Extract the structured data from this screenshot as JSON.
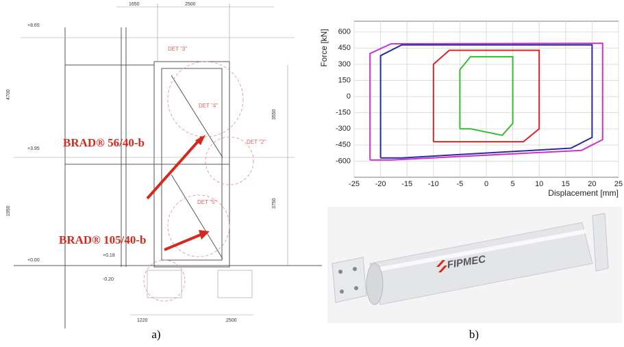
{
  "figure_a": {
    "levels": [
      "+8.65",
      "+3.95",
      "+0.00",
      "+0.18",
      "-0.20"
    ],
    "dimensions": [
      "1650",
      "2500",
      "4700",
      "3550",
      "1950",
      "3750",
      "1220",
      "2500"
    ],
    "details": [
      "DET \"3\"",
      "DET \"4\"",
      "DET \"2\"",
      "DET \"5\""
    ],
    "brace_labels": [
      "BRAD® 56/40-b",
      "BRAD® 105/40-b"
    ],
    "caption": "a)"
  },
  "chart_data": {
    "type": "line",
    "xlabel": "Displacement [mm]",
    "ylabel": "Force [kN]",
    "xlim": [
      -25,
      25
    ],
    "ylim": [
      -750,
      700
    ],
    "xticks": [
      -25,
      -20,
      -15,
      -10,
      -5,
      0,
      5,
      10,
      15,
      20,
      25
    ],
    "yticks": [
      -600,
      -450,
      -300,
      -150,
      0,
      150,
      300,
      450,
      600
    ],
    "grid": true,
    "series": [
      {
        "color": "#cc33cc",
        "x": [
          -22,
          -22,
          -18,
          22,
          22,
          18,
          -18,
          -22
        ],
        "values": [
          -590,
          400,
          490,
          495,
          -400,
          -500,
          -590,
          -590
        ]
      },
      {
        "color": "#2a2aa0",
        "x": [
          -20,
          -20,
          -16,
          20,
          20,
          16,
          -16,
          -20
        ],
        "values": [
          -570,
          380,
          480,
          480,
          -380,
          -480,
          -570,
          -570
        ]
      },
      {
        "color": "#e02020",
        "x": [
          -10,
          -10,
          -7,
          10,
          10,
          7,
          -7,
          -10
        ],
        "values": [
          -420,
          300,
          430,
          430,
          -300,
          -420,
          -420,
          -420
        ]
      },
      {
        "color": "#33bb33",
        "x": [
          -5,
          -5,
          -3,
          5,
          5,
          3,
          -3,
          -5
        ],
        "values": [
          -300,
          250,
          370,
          370,
          -250,
          -360,
          -300,
          -300
        ]
      }
    ]
  },
  "figure_b": {
    "logo": "FIPMEC",
    "caption": "b)"
  }
}
